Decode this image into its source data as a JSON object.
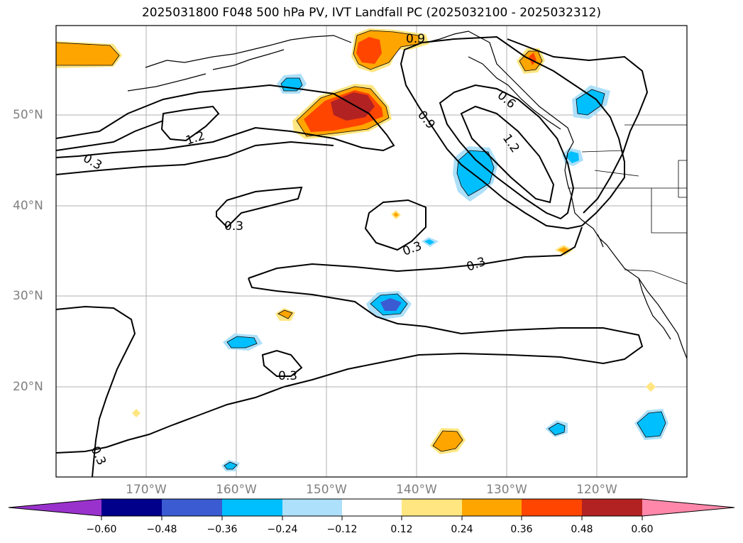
{
  "title": "2025031800 F048 500 hPa PV, IVT Landfall PC (2025032100 - 2025032312)",
  "map": {
    "lat_labels": [
      "50°N",
      "40°N",
      "30°N",
      "20°N"
    ],
    "lon_labels": [
      "170°W",
      "160°W",
      "150°W",
      "140°W",
      "130°W",
      "120°W"
    ],
    "lon_range": [
      -180,
      -110
    ],
    "lat_range": [
      10,
      60
    ],
    "contour_labels": [
      "0.9",
      "1.2",
      "0.6",
      "0.9",
      "1.2",
      "0.3",
      "0.3",
      "0.3",
      "0.3",
      "0.3",
      "0.3"
    ],
    "colors": {
      "neg_060": "#9932cc",
      "neg_048": "#00008b",
      "neg_036": "#3a5bd1",
      "neg_024": "#00bfff",
      "neg_012": "#ade0fa",
      "pos_012": "#ffe680",
      "pos_024": "#ffa500",
      "pos_036": "#ff4500",
      "pos_048": "#b22222",
      "pos_060": "#ff88aa"
    }
  },
  "colorbar": {
    "ticks": [
      "−0.60",
      "−0.48",
      "−0.36",
      "−0.24",
      "−0.12",
      "0.12",
      "0.24",
      "0.36",
      "0.48",
      "0.60"
    ]
  }
}
